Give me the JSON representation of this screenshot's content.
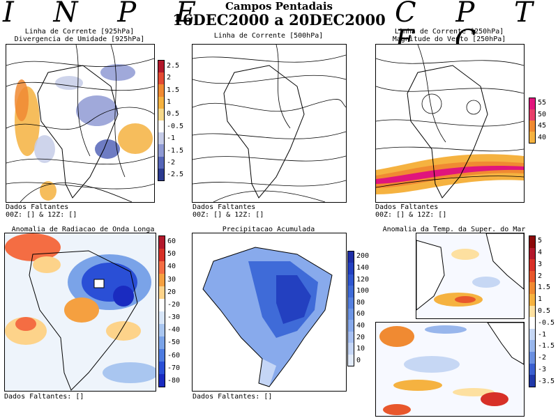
{
  "header": {
    "inpe": "I N P E",
    "cptec": "C P T E C",
    "title": "Campos Pentadais",
    "dates": "16DEC2000 a 20DEC2000"
  },
  "p1": {
    "title1": "Linha de Corrente [925hPa]",
    "title2": "Divergencia de Umidade [925hPa]",
    "foot1": "Dados Faltantes",
    "foot2": "00Z: [] & 12Z: []",
    "scale": [
      "2.5",
      "2",
      "1.5",
      "1",
      "0.5",
      "-0.5",
      "-1",
      "-1.5",
      "-2",
      "-2.5"
    ],
    "colors": [
      "#b2182b",
      "#e34a33",
      "#f08a32",
      "#f5b240",
      "#f7d98a",
      "#ffffff",
      "#c6cce8",
      "#8f9ad4",
      "#5565b8",
      "#2b3a8f"
    ]
  },
  "p2": {
    "title1": "Linha de Corrente [500hPa]",
    "foot1": "Dados Faltantes",
    "foot2": "00Z: [] & 12Z: []"
  },
  "p3": {
    "title1": "Linha de Corrente [250hPa]",
    "title2": "Magnitude do Vento [250hPa]",
    "foot1": "Dados Faltantes",
    "foot2": "00Z: [] & 12Z: []",
    "scale": [
      "55",
      "50",
      "45",
      "40"
    ],
    "colors": [
      "#e0157c",
      "#e8406a",
      "#f08a32",
      "#f5b240"
    ]
  },
  "p4": {
    "title1": "Anomalia de Radiacao de Onda Longa",
    "foot1": "Dados Faltantes: []",
    "scale": [
      "60",
      "50",
      "40",
      "30",
      "20",
      "-20",
      "-30",
      "-40",
      "-50",
      "-60",
      "-70",
      "-80"
    ],
    "colors": [
      "#b2182b",
      "#d73027",
      "#f46d43",
      "#f5a040",
      "#fdd38a",
      "#ffffff",
      "#d8e6f8",
      "#a9c6f0",
      "#7aa3e8",
      "#4d7be0",
      "#2a4fd6",
      "#1a2bc0"
    ]
  },
  "p5": {
    "title1": "Precipitacao Acumulada",
    "foot1": "Dados Faltantes: []",
    "scale": [
      "200",
      "140",
      "120",
      "100",
      "80",
      "60",
      "40",
      "20",
      "10",
      "0"
    ],
    "colors": [
      "#1e2ea6",
      "#2340c0",
      "#2f56d0",
      "#3f6bd8",
      "#5580e0",
      "#6d95e6",
      "#88aaec",
      "#a7c0f2",
      "#c5d6f6",
      "#e2ebfa"
    ]
  },
  "p6": {
    "title1": "Anomalia da Temp. da Super. do Mar",
    "scale": [
      "5",
      "4",
      "3",
      "2",
      "1.5",
      "1",
      "0.5",
      "-0.5",
      "-1",
      "-1.5",
      "-2",
      "-3",
      "-3.5"
    ],
    "colors": [
      "#8c0a0a",
      "#b2182b",
      "#d73027",
      "#e8572c",
      "#f08a32",
      "#f5b240",
      "#fde0a0",
      "#ffffff",
      "#c6d7f4",
      "#98b6ec",
      "#6a8fe0",
      "#3b5fcf",
      "#2038a8"
    ]
  }
}
